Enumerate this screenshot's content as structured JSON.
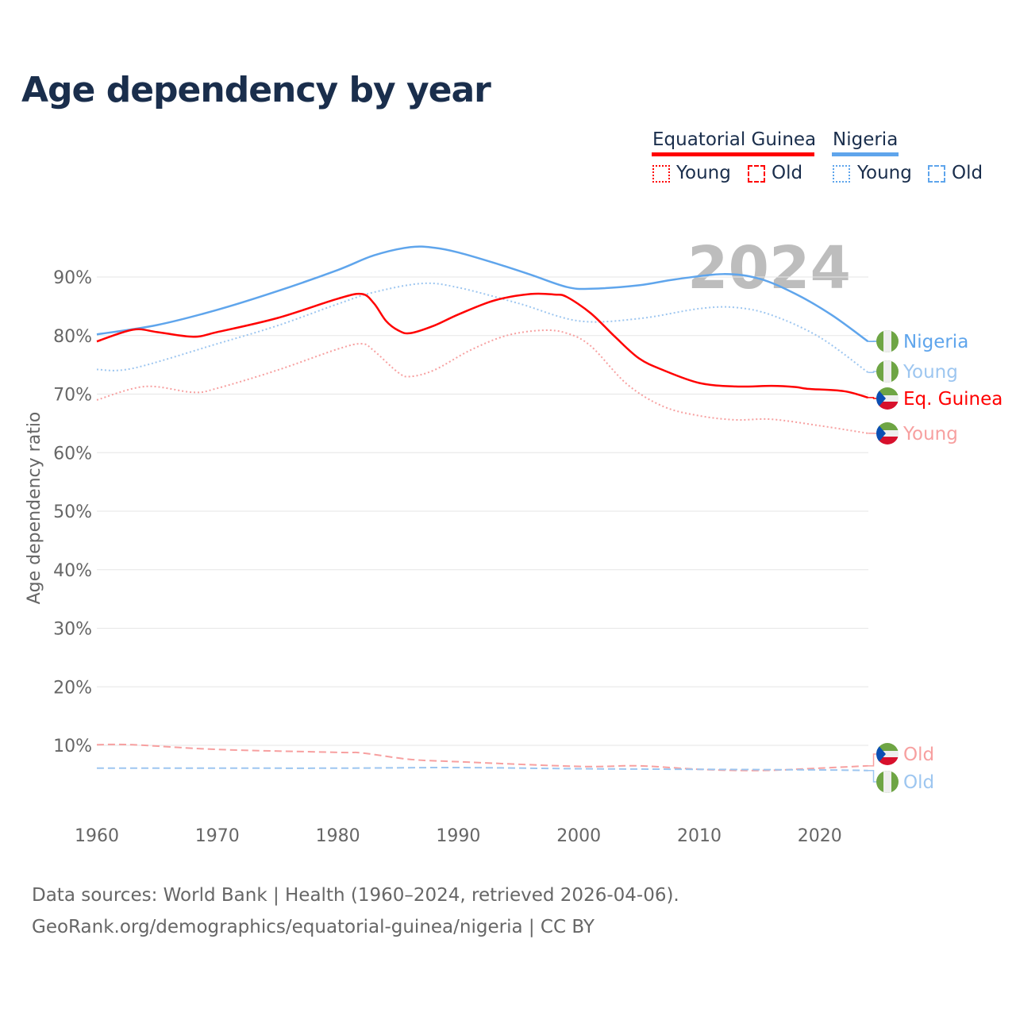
{
  "title": "Age dependency by year",
  "legend": {
    "groups": [
      {
        "name": "Equatorial Guinea",
        "color": "#ff0000",
        "young": "Young",
        "old": "Old"
      },
      {
        "name": "Nigeria",
        "color": "#5fa5ec",
        "young": "Young",
        "old": "Old"
      }
    ]
  },
  "year_label": "2024",
  "source": {
    "line1": "Data sources: World Bank | Health (1960–2024, retrieved 2026-04-06).",
    "line2": "GeoRank.org/demographics/equatorial-guinea/nigeria | CC BY"
  },
  "chart_data": {
    "type": "line",
    "title": "Age dependency by year",
    "xlabel": "",
    "ylabel": "Age dependency ratio",
    "xlim": [
      1960,
      2024
    ],
    "ylim": [
      0,
      95
    ],
    "xticks": [
      "1960",
      "1970",
      "1980",
      "1990",
      "2000",
      "2010",
      "2020"
    ],
    "yticks": [
      {
        "v": 10,
        "l": "10%"
      },
      {
        "v": 20,
        "l": "20%"
      },
      {
        "v": 30,
        "l": "30%"
      },
      {
        "v": 40,
        "l": "40%"
      },
      {
        "v": 50,
        "l": "50%"
      },
      {
        "v": 60,
        "l": "60%"
      },
      {
        "v": 70,
        "l": "70%"
      },
      {
        "v": 80,
        "l": "80%"
      },
      {
        "v": 90,
        "l": "90%"
      }
    ],
    "series": [
      {
        "name": "Nigeria",
        "label": "Nigeria",
        "country": "ng",
        "color": "#5fa5ec",
        "dash": "",
        "width": 2.5,
        "points": [
          [
            1960,
            80.2
          ],
          [
            1965,
            81.8
          ],
          [
            1970,
            84.4
          ],
          [
            1975,
            87.6
          ],
          [
            1980,
            91.2
          ],
          [
            1983,
            93.7
          ],
          [
            1986,
            95.1
          ],
          [
            1988,
            95.0
          ],
          [
            1990,
            94.2
          ],
          [
            1993,
            92.4
          ],
          [
            1996,
            90.4
          ],
          [
            1999,
            88.3
          ],
          [
            2001,
            88.0
          ],
          [
            2005,
            88.6
          ],
          [
            2008,
            89.6
          ],
          [
            2012,
            90.5
          ],
          [
            2015,
            89.7
          ],
          [
            2018,
            87.1
          ],
          [
            2021,
            83.5
          ],
          [
            2024,
            79.0
          ]
        ]
      },
      {
        "name": "Nigeria Young",
        "label": "Young",
        "country": "ng",
        "color": "#9dc6f0",
        "dash": "2 3",
        "width": 2,
        "points": [
          [
            1960,
            74.2
          ],
          [
            1963,
            74.4
          ],
          [
            1970,
            78.6
          ],
          [
            1975,
            81.7
          ],
          [
            1980,
            85.4
          ],
          [
            1983,
            87.4
          ],
          [
            1987,
            88.9
          ],
          [
            1990,
            88.2
          ],
          [
            1995,
            85.5
          ],
          [
            2000,
            82.5
          ],
          [
            2005,
            82.9
          ],
          [
            2010,
            84.6
          ],
          [
            2013,
            84.8
          ],
          [
            2016,
            83.5
          ],
          [
            2020,
            79.7
          ],
          [
            2024,
            73.7
          ]
        ]
      },
      {
        "name": "Equatorial Guinea",
        "label": "Eq. Guinea",
        "country": "gq",
        "color": "#ff0000",
        "dash": "",
        "width": 2.5,
        "points": [
          [
            1960,
            79.0
          ],
          [
            1963,
            81.0
          ],
          [
            1965,
            80.6
          ],
          [
            1968,
            79.8
          ],
          [
            1970,
            80.6
          ],
          [
            1975,
            83.0
          ],
          [
            1980,
            86.3
          ],
          [
            1982,
            87.1
          ],
          [
            1983,
            85.5
          ],
          [
            1984,
            82.5
          ],
          [
            1985,
            80.9
          ],
          [
            1986,
            80.4
          ],
          [
            1988,
            81.7
          ],
          [
            1990,
            83.6
          ],
          [
            1993,
            86.0
          ],
          [
            1996,
            87.1
          ],
          [
            1998,
            87.0
          ],
          [
            1999,
            86.6
          ],
          [
            2001,
            83.8
          ],
          [
            2003,
            79.8
          ],
          [
            2005,
            76.1
          ],
          [
            2007,
            74.1
          ],
          [
            2010,
            71.9
          ],
          [
            2013,
            71.3
          ],
          [
            2016,
            71.4
          ],
          [
            2018,
            71.2
          ],
          [
            2019,
            70.9
          ],
          [
            2022,
            70.5
          ],
          [
            2024,
            69.4
          ]
        ]
      },
      {
        "name": "Equatorial Guinea Young",
        "label": "Young",
        "country": "gq",
        "color": "#f7a0a0",
        "dash": "2 3",
        "width": 2,
        "points": [
          [
            1960,
            69.0
          ],
          [
            1964,
            71.3
          ],
          [
            1968,
            70.3
          ],
          [
            1970,
            71.0
          ],
          [
            1975,
            74.1
          ],
          [
            1980,
            77.7
          ],
          [
            1982,
            78.6
          ],
          [
            1983,
            77.4
          ],
          [
            1985,
            73.7
          ],
          [
            1986,
            73.0
          ],
          [
            1988,
            74.1
          ],
          [
            1991,
            77.5
          ],
          [
            1994,
            80.0
          ],
          [
            1997,
            80.9
          ],
          [
            1999,
            80.4
          ],
          [
            2001,
            78.2
          ],
          [
            2004,
            71.7
          ],
          [
            2007,
            67.9
          ],
          [
            2010,
            66.3
          ],
          [
            2013,
            65.6
          ],
          [
            2016,
            65.7
          ],
          [
            2020,
            64.6
          ],
          [
            2024,
            63.3
          ]
        ]
      },
      {
        "name": "Equatorial Guinea Old",
        "label": "Old",
        "country": "gq",
        "color": "#f7a0a0",
        "dash": "9 5",
        "width": 2,
        "points": [
          [
            1960,
            10.1
          ],
          [
            1963,
            10.1
          ],
          [
            1970,
            9.3
          ],
          [
            1980,
            8.8
          ],
          [
            1982,
            8.7
          ],
          [
            1986,
            7.6
          ],
          [
            1990,
            7.2
          ],
          [
            2000,
            6.4
          ],
          [
            2005,
            6.5
          ],
          [
            2010,
            5.9
          ],
          [
            2015,
            5.7
          ],
          [
            2020,
            6.1
          ],
          [
            2024,
            6.5
          ]
        ]
      },
      {
        "name": "Nigeria Old",
        "label": "Old",
        "country": "ng",
        "color": "#9dc6f0",
        "dash": "9 5",
        "width": 2,
        "points": [
          [
            1960,
            6.1
          ],
          [
            1970,
            6.1
          ],
          [
            1980,
            6.1
          ],
          [
            1990,
            6.2
          ],
          [
            2000,
            6.0
          ],
          [
            2010,
            5.9
          ],
          [
            2020,
            5.8
          ],
          [
            2024,
            5.7
          ]
        ]
      }
    ]
  }
}
